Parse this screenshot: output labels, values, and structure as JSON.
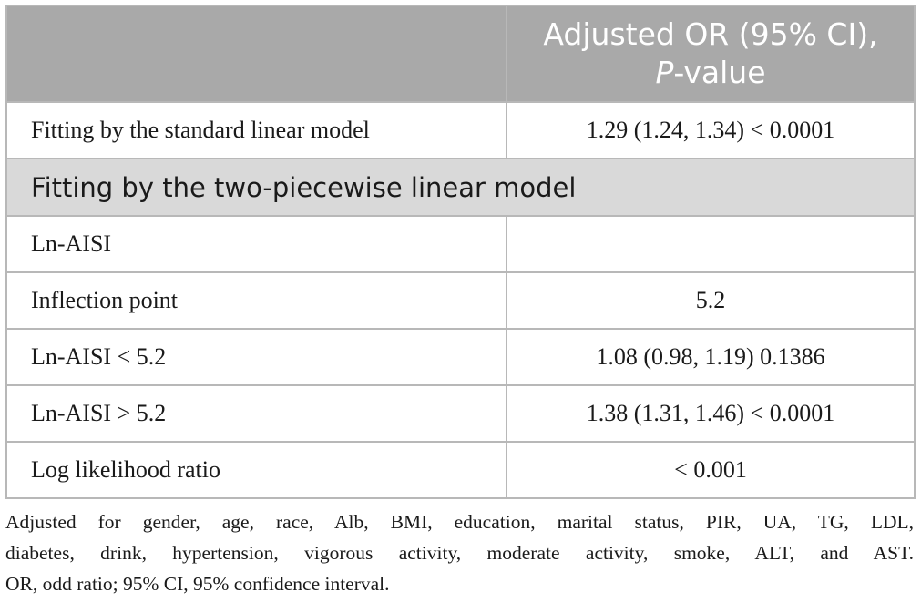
{
  "table": {
    "header": {
      "col1": "",
      "col2_line1": "Adjusted OR (95% CI),",
      "col2_line2_italic": "P",
      "col2_line2_rest": "-value"
    },
    "rows": [
      {
        "label": "Fitting by the standard linear model",
        "value": "1.29 (1.24, 1.34) < 0.0001"
      }
    ],
    "section": "Fitting by the two-piecewise linear model",
    "section_rows": [
      {
        "label": "Ln-AISI",
        "value": ""
      },
      {
        "label": "Inflection point",
        "value": "5.2"
      },
      {
        "label": "Ln-AISI < 5.2",
        "value": "1.08 (0.98, 1.19) 0.1386"
      },
      {
        "label": "Ln-AISI > 5.2",
        "value": "1.38 (1.31, 1.46) < 0.0001"
      },
      {
        "label": "Log likelihood ratio",
        "value": "< 0.001"
      }
    ]
  },
  "footnote": {
    "line1": "Adjusted for gender, age, race, Alb, BMI, education, marital status, PIR, UA, TG, LDL,",
    "line2": "diabetes, drink, hypertension, vigorous activity, moderate activity, smoke, ALT, and AST.",
    "line3": "OR, odd ratio; 95% CI, 95% confidence interval."
  }
}
